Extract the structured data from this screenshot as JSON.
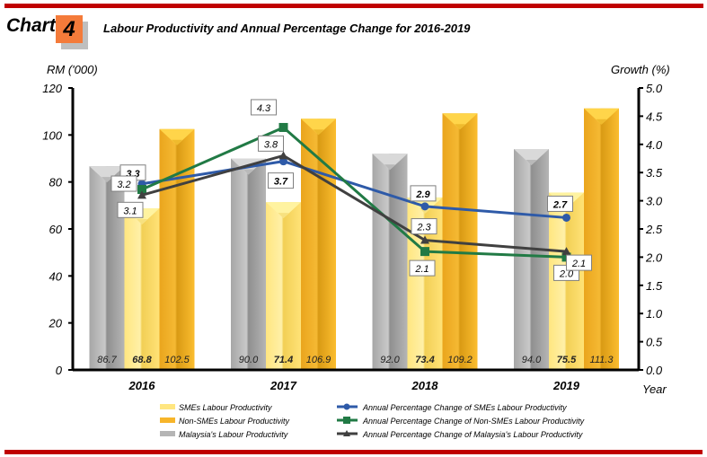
{
  "header": {
    "chart_word": "Chart",
    "chart_number": "4",
    "title": "Labour Productivity and Annual Percentage Change for 2016-2019"
  },
  "colors": {
    "frame_red": "#c00000",
    "badge_orange": "#f47b3a",
    "sme_bar": "#ffe066",
    "nonsme_bar": "#f7b52a",
    "malaysia_bar": "#b3b3b3",
    "sme_line": "#2e5aa8",
    "nonsme_line": "#217a45",
    "malaysia_line": "#404040"
  },
  "chart_data": {
    "type": "bar",
    "title": "Labour Productivity and Annual Percentage Change for 2016-2019",
    "xlabel": "Year",
    "ylabel": "RM ('000)",
    "y2label": "Growth (%)",
    "ylim": [
      0,
      120
    ],
    "y2lim": [
      0,
      5.0
    ],
    "yticks": [
      "0",
      "20",
      "40",
      "60",
      "80",
      "100",
      "120"
    ],
    "y2ticks": [
      "0.0",
      "0.5",
      "1.0",
      "1.5",
      "2.0",
      "2.5",
      "3.0",
      "3.5",
      "4.0",
      "4.5",
      "5.0"
    ],
    "grid": false,
    "legend_position": "bottom",
    "categories": [
      "2016",
      "2017",
      "2018",
      "2019"
    ],
    "bar_series": [
      {
        "name": "Malaysia's Labour Productivity",
        "key": "malaysia",
        "values": [
          86.7,
          90.0,
          92.0,
          94.0
        ],
        "labels": [
          "86.7",
          "90.0",
          "92.0",
          "94.0"
        ]
      },
      {
        "name": "SMEs Labour Productivity",
        "key": "sme",
        "values": [
          68.8,
          71.4,
          73.4,
          75.5
        ],
        "labels": [
          "68.8",
          "71.4",
          "73.4",
          "75.5"
        ]
      },
      {
        "name": "Non-SMEs Labour Productivity",
        "key": "nonsme",
        "values": [
          102.5,
          106.9,
          109.2,
          111.3
        ],
        "labels": [
          "102.5",
          "106.9",
          "109.2",
          "111.3"
        ]
      }
    ],
    "line_series": [
      {
        "name": "Annual Percentage Change of SMEs Labour Productivity",
        "key": "sme",
        "marker": "circle",
        "axis": "right",
        "values": [
          3.3,
          3.7,
          2.9,
          2.7
        ],
        "labels": [
          "3.3",
          "3.7",
          "2.9",
          "2.7"
        ]
      },
      {
        "name": "Annual Percentage Change of Non-SMEs Labour Productivity",
        "key": "nonsme",
        "marker": "square",
        "axis": "right",
        "values": [
          3.2,
          4.3,
          2.1,
          2.0
        ],
        "labels": [
          "3.2",
          "4.3",
          "2.1",
          "2.0"
        ]
      },
      {
        "name": "Annual Percentage Change of Malaysia's Labour Productivity",
        "key": "malaysia",
        "marker": "triangle",
        "axis": "right",
        "values": [
          3.1,
          3.8,
          2.3,
          2.1
        ],
        "labels": [
          "3.1",
          "3.8",
          "2.3",
          "2.1"
        ]
      }
    ],
    "legend": {
      "bars": [
        "SMEs Labour Productivity",
        "Non-SMEs Labour Productivity",
        "Malaysia's Labour Productivity"
      ],
      "lines": [
        "Annual Percentage Change of SMEs Labour Productivity",
        "Annual Percentage Change of Non-SMEs Labour Productivity",
        "Annual Percentage Change of Malaysia's Labour Productivity"
      ]
    }
  }
}
